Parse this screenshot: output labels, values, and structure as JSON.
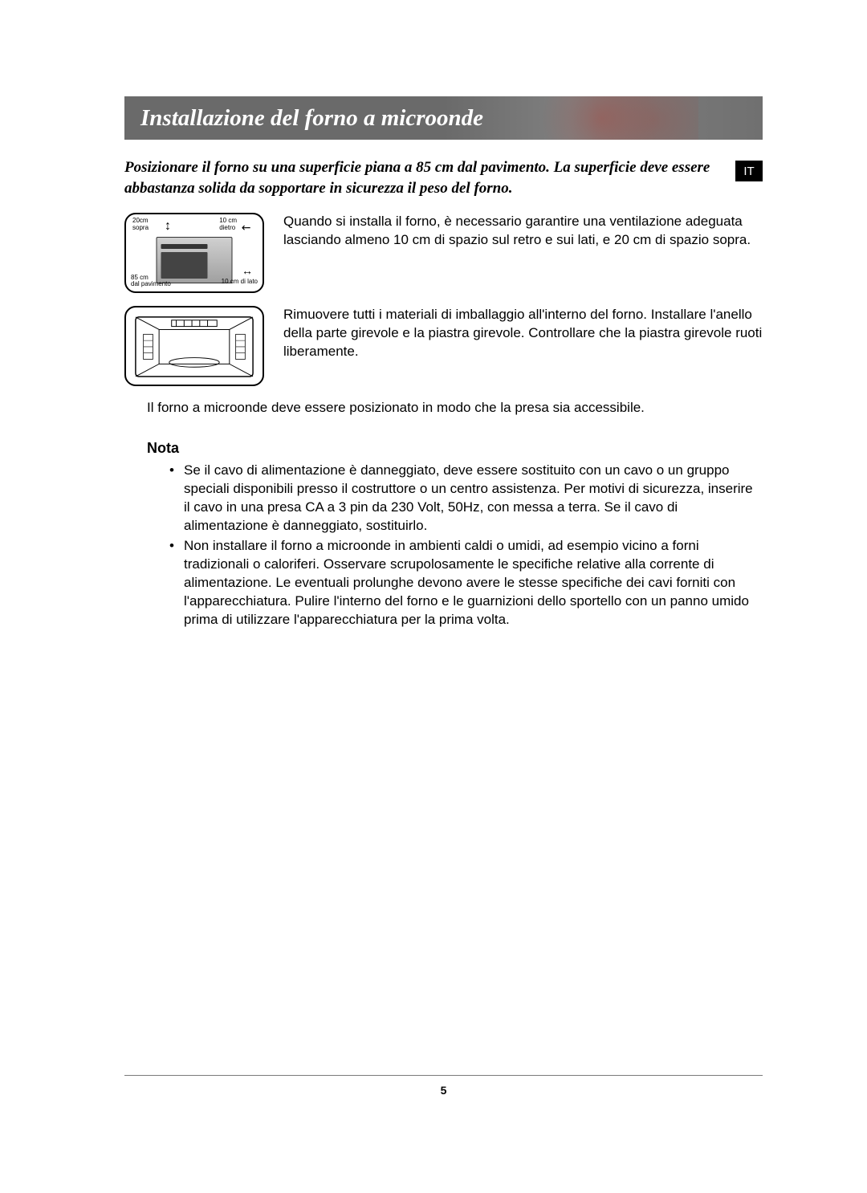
{
  "header": {
    "title": "Installazione del forno a microonde",
    "title_color": "#ffffff",
    "band_color": "#6a6a6a",
    "title_fontsize": 29
  },
  "lang_tag": "IT",
  "intro": "Posizionare il forno su una superficie piana a 85 cm dal pavimento. La superficie deve essere abbastanza solida da sopportare in sicurezza il peso del forno.",
  "diagram1": {
    "label_top_left": "20cm\nsopra",
    "label_top_right": "10 cm\ndietro",
    "label_bottom_left": "85 cm\ndal pavimento",
    "label_bottom_right": "10 cm di lato"
  },
  "row1_text": "Quando si installa il forno, è necessario garantire una ventilazione adeguata lasciando almeno 10 cm di spazio sul retro e sui lati, e 20 cm di spazio sopra.",
  "row2_text": "Rimuovere tutti i materiali di imballaggio all'interno del forno. Installare l'anello della parte girevole e la piastra girevole. Controllare che la piastra girevole ruoti liberamente.",
  "standalone_text": "Il forno a microonde deve essere posizionato in modo che la presa sia accessibile.",
  "nota": {
    "heading": "Nota",
    "items": [
      "Se il cavo di alimentazione è danneggiato, deve essere sostituito con un cavo o un gruppo speciali disponibili presso il costruttore o un centro assistenza. Per motivi di sicurezza, inserire il cavo in una presa CA a 3 pin da 230 Volt, 50Hz, con messa a terra. Se il cavo di alimentazione è danneggiato, sostituirlo.",
      "Non installare il forno a microonde in ambienti caldi o umidi, ad esempio vicino a forni tradizionali o caloriferi. Osservare scrupolosamente le specifiche relative alla corrente di alimentazione. Le eventuali prolunghe devono avere le stesse specifiche dei cavi forniti con l'apparecchiatura. Pulire l'interno del forno e le guarnizioni dello sportello con un panno umido prima di utilizzare l'apparecchiatura per la prima volta."
    ]
  },
  "page_number": "5",
  "colors": {
    "text": "#000000",
    "background": "#ffffff",
    "rule": "#7a7a7a",
    "lang_tag_bg": "#000000",
    "lang_tag_fg": "#ffffff"
  },
  "typography": {
    "body_fontsize": 17,
    "title_font": "Georgia serif italic bold",
    "intro_font": "Georgia serif italic bold",
    "intro_fontsize": 19
  }
}
